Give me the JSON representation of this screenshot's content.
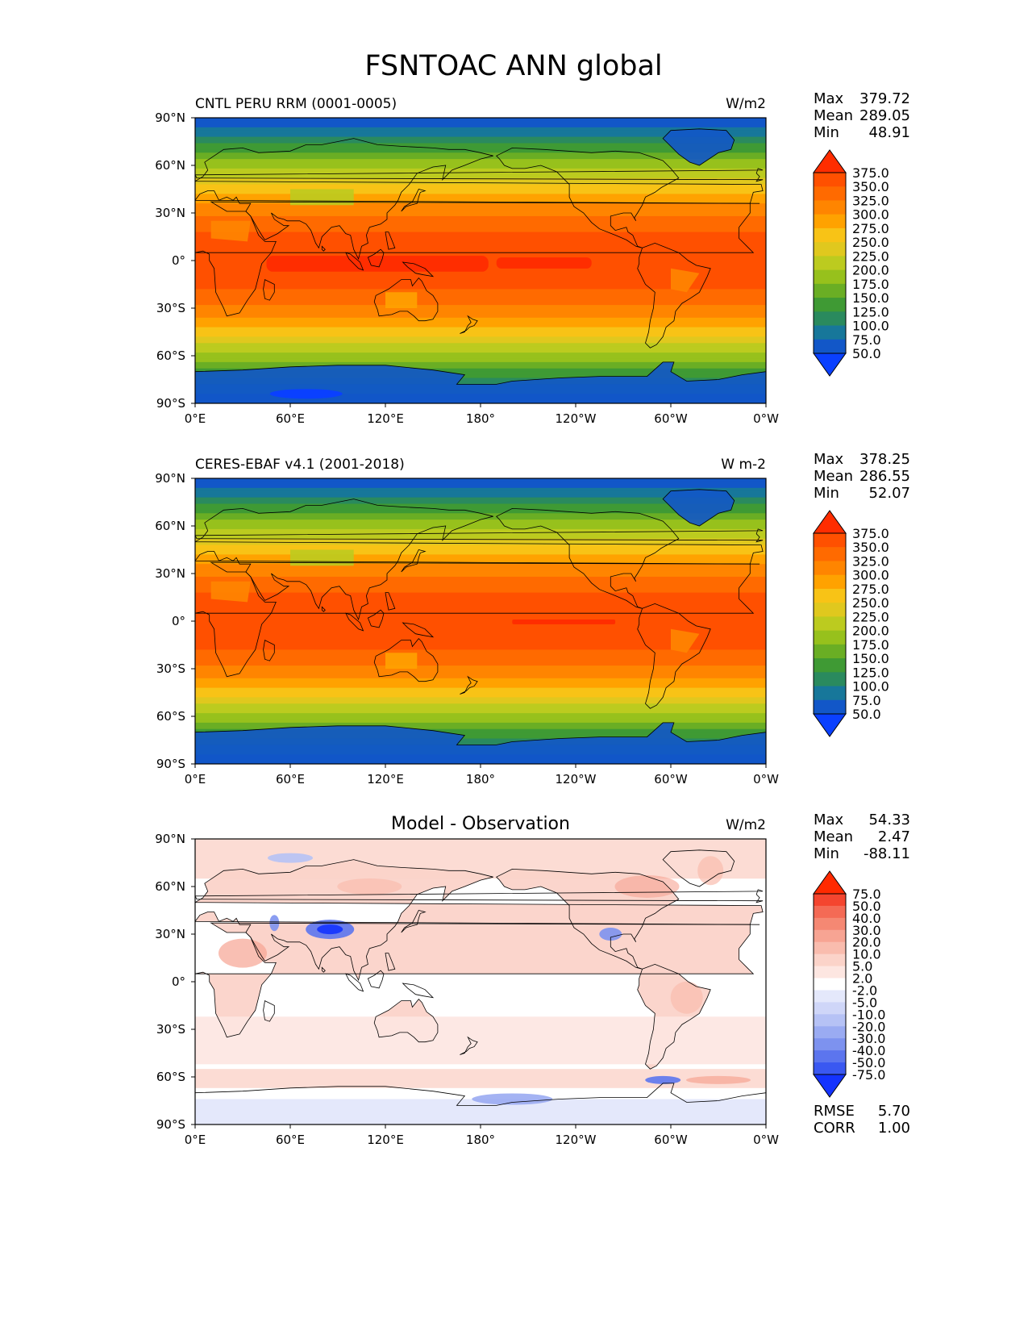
{
  "title": "FSNTOAC ANN global",
  "x_ticks": [
    "0°E",
    "60°E",
    "120°E",
    "180°",
    "120°W",
    "60°W",
    "0°W"
  ],
  "y_ticks": [
    "90°N",
    "60°N",
    "30°N",
    "0°",
    "30°S",
    "60°S",
    "90°S"
  ],
  "labels": {
    "max": "Max",
    "mean": "Mean",
    "min": "Min",
    "rmse": "RMSE",
    "corr": "CORR"
  },
  "panels": [
    {
      "left_title": "CNTL PERU RRM (0001-0005)",
      "center_title": "",
      "units": "W/m2",
      "stats": {
        "max": "379.72",
        "mean": "289.05",
        "min": "48.91"
      },
      "colorbar": {
        "labels": [
          "375.0",
          "350.0",
          "325.0",
          "300.0",
          "275.0",
          "250.0",
          "225.0",
          "200.0",
          "175.0",
          "150.0",
          "125.0",
          "100.0",
          "75.0",
          "50.0"
        ],
        "colors": [
          "#ff2d00",
          "#ff5000",
          "#ff6a00",
          "#ff8500",
          "#ffa200",
          "#f8c316",
          "#e0c81e",
          "#bccb1f",
          "#97c11c",
          "#6aae24",
          "#3f9a34",
          "#2a8a5e",
          "#17779a",
          "#1257c8",
          "#0a40ff"
        ]
      },
      "field": "toa"
    },
    {
      "left_title": "CERES-EBAF v4.1 (2001-2018)",
      "center_title": "",
      "units": "W m-2",
      "stats": {
        "max": "378.25",
        "mean": "286.55",
        "min": "52.07"
      },
      "colorbar": {
        "labels": [
          "375.0",
          "350.0",
          "325.0",
          "300.0",
          "275.0",
          "250.0",
          "225.0",
          "200.0",
          "175.0",
          "150.0",
          "125.0",
          "100.0",
          "75.0",
          "50.0"
        ],
        "colors": [
          "#ff2d00",
          "#ff5000",
          "#ff6a00",
          "#ff8500",
          "#ffa200",
          "#f8c316",
          "#e0c81e",
          "#bccb1f",
          "#97c11c",
          "#6aae24",
          "#3f9a34",
          "#2a8a5e",
          "#17779a",
          "#1257c8",
          "#0a40ff"
        ]
      },
      "field": "toa"
    },
    {
      "left_title": "",
      "center_title": "Model - Observation",
      "units": "W/m2",
      "stats": {
        "max": "54.33",
        "mean": "2.47",
        "min": "-88.11",
        "rmse": "5.70",
        "corr": "1.00"
      },
      "colorbar": {
        "labels": [
          "75.0",
          "50.0",
          "40.0",
          "30.0",
          "20.0",
          "10.0",
          "5.0",
          "2.0",
          "-2.0",
          "-5.0",
          "-10.0",
          "-20.0",
          "-30.0",
          "-40.0",
          "-50.0",
          "-75.0"
        ],
        "colors": [
          "#ff2a00",
          "#f4452f",
          "#f46a55",
          "#f58873",
          "#f7a493",
          "#f9bcae",
          "#fbd3c9",
          "#fde6e1",
          "#ffffff",
          "#e4e8fb",
          "#cfd6f8",
          "#b6c2f5",
          "#9aabf2",
          "#7d92ef",
          "#5c75ee",
          "#3a58f1",
          "#1433ff"
        ]
      },
      "field": "diff"
    }
  ]
}
